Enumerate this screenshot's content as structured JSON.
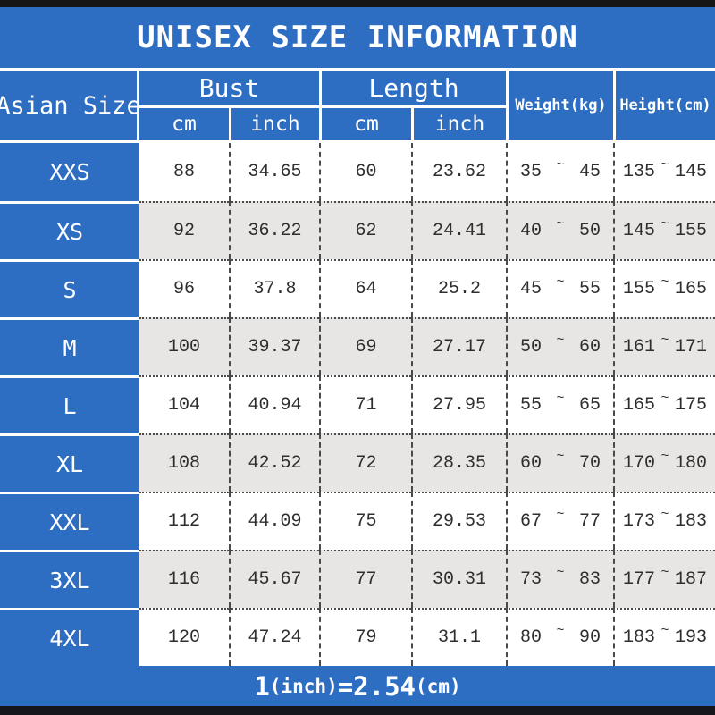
{
  "title": "UNISEX SIZE INFORMATION",
  "chart_data": {
    "type": "table",
    "title": "UNISEX SIZE INFORMATION",
    "header": {
      "size_column": "Asian Size",
      "groups": [
        {
          "label": "Bust",
          "sub": [
            "cm",
            "inch"
          ]
        },
        {
          "label": "Length",
          "sub": [
            "cm",
            "inch"
          ]
        }
      ],
      "weight": "Weight(kg)",
      "height": "Height(cm)",
      "range_separator": "~"
    },
    "rows": [
      {
        "size": "XXS",
        "bust_cm": "88",
        "bust_inch": "34.65",
        "length_cm": "60",
        "length_inch": "23.62",
        "weight_min": "35",
        "weight_max": "45",
        "height_min": "135",
        "height_max": "145"
      },
      {
        "size": "XS",
        "bust_cm": "92",
        "bust_inch": "36.22",
        "length_cm": "62",
        "length_inch": "24.41",
        "weight_min": "40",
        "weight_max": "50",
        "height_min": "145",
        "height_max": "155"
      },
      {
        "size": "S",
        "bust_cm": "96",
        "bust_inch": "37.8",
        "length_cm": "64",
        "length_inch": "25.2",
        "weight_min": "45",
        "weight_max": "55",
        "height_min": "155",
        "height_max": "165"
      },
      {
        "size": "M",
        "bust_cm": "100",
        "bust_inch": "39.37",
        "length_cm": "69",
        "length_inch": "27.17",
        "weight_min": "50",
        "weight_max": "60",
        "height_min": "161",
        "height_max": "171"
      },
      {
        "size": "L",
        "bust_cm": "104",
        "bust_inch": "40.94",
        "length_cm": "71",
        "length_inch": "27.95",
        "weight_min": "55",
        "weight_max": "65",
        "height_min": "165",
        "height_max": "175"
      },
      {
        "size": "XL",
        "bust_cm": "108",
        "bust_inch": "42.52",
        "length_cm": "72",
        "length_inch": "28.35",
        "weight_min": "60",
        "weight_max": "70",
        "height_min": "170",
        "height_max": "180"
      },
      {
        "size": "XXL",
        "bust_cm": "112",
        "bust_inch": "44.09",
        "length_cm": "75",
        "length_inch": "29.53",
        "weight_min": "67",
        "weight_max": "77",
        "height_min": "173",
        "height_max": "183"
      },
      {
        "size": "3XL",
        "bust_cm": "116",
        "bust_inch": "45.67",
        "length_cm": "77",
        "length_inch": "30.31",
        "weight_min": "73",
        "weight_max": "83",
        "height_min": "177",
        "height_max": "187"
      },
      {
        "size": "4XL",
        "bust_cm": "120",
        "bust_inch": "47.24",
        "length_cm": "79",
        "length_inch": "31.1",
        "weight_min": "80",
        "weight_max": "90",
        "height_min": "183",
        "height_max": "193"
      }
    ]
  },
  "footer": {
    "note": "1(inch)=2.54(cm)",
    "segments": [
      {
        "text": "1",
        "large": true
      },
      {
        "text": "(inch)",
        "large": false
      },
      {
        "text": "=2.54",
        "large": true
      },
      {
        "text": "(cm)",
        "large": false
      }
    ]
  },
  "colors": {
    "accent_blue": "#2d6ec3",
    "alt_row": "#e7e6e4",
    "bar_black": "#161616",
    "text_dark": "#2e2e2e"
  }
}
